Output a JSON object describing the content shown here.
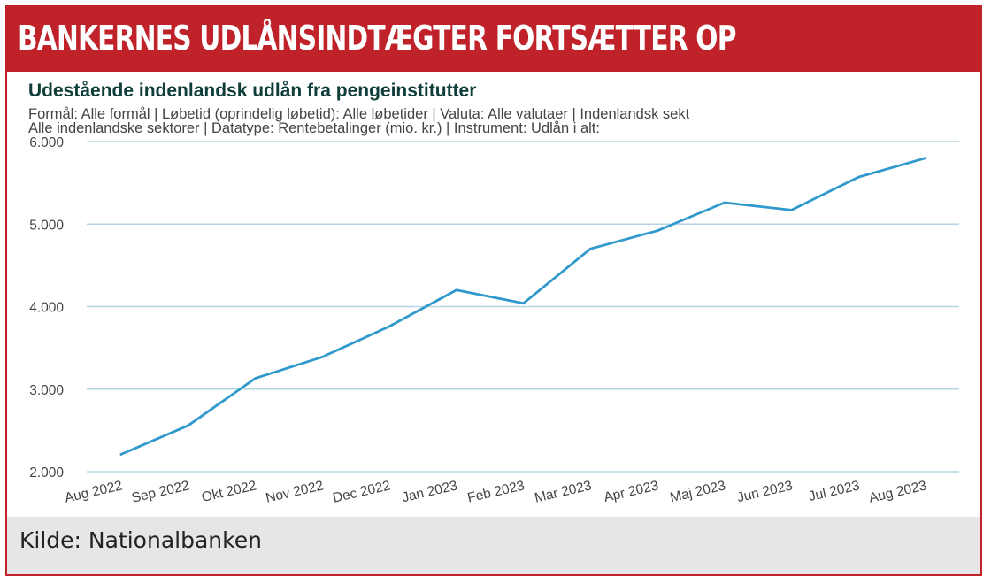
{
  "banner": {
    "title": "BANKERNES UDLÅNSINDTÆGTER FORTSÆTTER OP"
  },
  "footer": {
    "source": "Kilde: Nationalbanken"
  },
  "colors": {
    "accent": "#c0222a",
    "line": "#3199cc",
    "grid": "#b5d6e0",
    "title": "#0e3d3a",
    "footer_bg": "#e6e6e8"
  },
  "chart_data": {
    "type": "line",
    "title": "Udestående indenlandsk udlån fra pengeinstitutter",
    "subtitle_lines": [
      "Formål: Alle formål | Løbetid (oprindelig løbetid): Alle løbetider | Valuta: Alle valutaer | Indenlandsk sekt",
      "Alle indenlandske sektorer | Datatype: Rentebetalinger (mio. kr.) | Instrument: Udlån i alt:"
    ],
    "categories": [
      "Aug 2022",
      "Sep 2022",
      "Okt 2022",
      "Nov 2022",
      "Dec 2022",
      "Jan 2023",
      "Feb 2023",
      "Mar 2023",
      "Apr 2023",
      "Maj 2023",
      "Jun 2023",
      "Jul 2023",
      "Aug 2023"
    ],
    "series": [
      {
        "name": "Rentebetalinger (mio. kr.)",
        "values": [
          2210,
          2560,
          3130,
          3390,
          3760,
          4200,
          4040,
          4700,
          4920,
          5260,
          5170,
          5570,
          5800
        ]
      }
    ],
    "yticks": [
      2000,
      3000,
      4000,
      5000,
      6000
    ],
    "ytick_labels": [
      "2.000",
      "3.000",
      "4.000",
      "5.000",
      "6.000"
    ],
    "ylim": [
      2000,
      6000
    ],
    "xlabel": "",
    "ylabel": "",
    "grid": true
  }
}
